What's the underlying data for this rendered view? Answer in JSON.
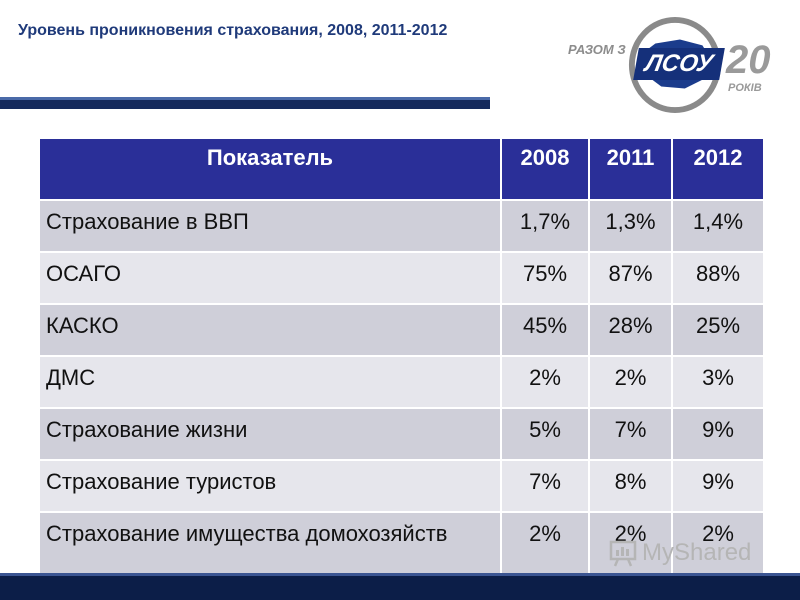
{
  "slide": {
    "title": "Уровень проникновения страхования, 2008, 2011-2012"
  },
  "logo": {
    "razom": "РАЗОМ З",
    "brand": "ЛСОУ",
    "number": "20",
    "rokiv": "РОКІВ",
    "colors": {
      "brand_blue": "#15307a",
      "gray": "#9a9a9a"
    }
  },
  "table": {
    "headers": [
      "Показатель",
      "2008",
      "2011",
      "2012"
    ],
    "rows": [
      [
        "Страхование в ВВП",
        "1,7%",
        "1,3%",
        "1,4%"
      ],
      [
        "ОСАГО",
        "75%",
        "87%",
        "88%"
      ],
      [
        "КАСКО",
        "45%",
        "28%",
        "25%"
      ],
      [
        "ДМС",
        "2%",
        "2%",
        "3%"
      ],
      [
        "Страхование жизни",
        "5%",
        "7%",
        "9%"
      ],
      [
        "Страхование туристов",
        "7%",
        "8%",
        "9%"
      ],
      [
        "Страхование имущества домохозяйств",
        "2%",
        "2%",
        "2%"
      ]
    ],
    "colors": {
      "header": "#2a2f98",
      "row_dark": "#cfcfd9",
      "row_light": "#e6e6ec"
    }
  },
  "watermark": {
    "text": "MyShared",
    "icon": "presentation-board-icon"
  }
}
